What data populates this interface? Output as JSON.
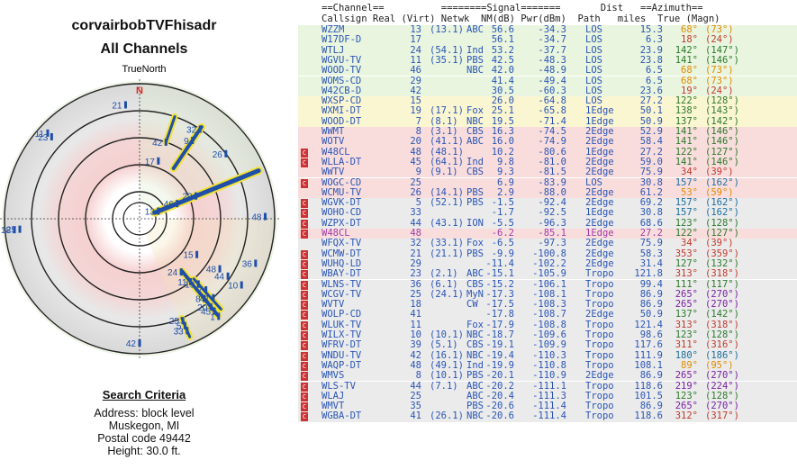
{
  "header": {
    "title": "corvairbobTVFhisadr",
    "subtitle": "All Channels",
    "north_label": "TrueNorth"
  },
  "criteria": {
    "heading": "Search Criteria",
    "address": "Address: block level",
    "city": "Muskegon, MI",
    "postal": "Postal code 49442",
    "height": "Height: 30.0 ft."
  },
  "table": {
    "group_header": "==Channel==          ========Signal=======       Dist   ==Azimuth==",
    "col_header": "Callsign Real (Virt) Netwk  NM(dB) Pwr(dBm)  Path   miles  True (Magn)",
    "badge": "C",
    "rows": [
      {
        "call": "WZZM",
        "real": "13",
        "virt": "(13.1)",
        "net": "ABC",
        "nm": "56.6",
        "pwr": "-34.3",
        "path": "LOS",
        "dist": "15.3",
        "az": "68°",
        "mag": "(73°)",
        "badge": false
      },
      {
        "call": "W17DF-D",
        "real": "17",
        "virt": "",
        "net": "",
        "nm": "56.1",
        "pwr": "-34.7",
        "path": "LOS",
        "dist": "6.3",
        "az": "18°",
        "mag": "(24°)",
        "badge": false
      },
      {
        "call": "WTLJ",
        "real": "24",
        "virt": "(54.1)",
        "net": "Ind",
        "nm": "53.2",
        "pwr": "-37.7",
        "path": "LOS",
        "dist": "23.9",
        "az": "142°",
        "mag": "(147°)",
        "badge": false
      },
      {
        "call": "WGVU-TV",
        "real": "11",
        "virt": "(35.1)",
        "net": "PBS",
        "nm": "42.5",
        "pwr": "-48.3",
        "path": "LOS",
        "dist": "23.8",
        "az": "141°",
        "mag": "(146°)",
        "badge": false
      },
      {
        "call": "WOOD-TV",
        "real": "46",
        "virt": "",
        "net": "NBC",
        "nm": "42.0",
        "pwr": "-48.9",
        "path": "LOS",
        "dist": "6.5",
        "az": "68°",
        "mag": "(73°)",
        "badge": false
      },
      {
        "call": "WOMS-CD",
        "real": "29",
        "virt": "",
        "net": "",
        "nm": "41.4",
        "pwr": "-49.4",
        "path": "LOS",
        "dist": "6.5",
        "az": "68°",
        "mag": "(73°)",
        "badge": false
      },
      {
        "call": "W42CB-D",
        "real": "42",
        "virt": "",
        "net": "",
        "nm": "30.5",
        "pwr": "-60.3",
        "path": "LOS",
        "dist": "23.6",
        "az": "19°",
        "mag": "(24°)",
        "badge": false
      },
      {
        "call": "WXSP-CD",
        "real": "15",
        "virt": "",
        "net": "",
        "nm": "26.0",
        "pwr": "-64.8",
        "path": "LOS",
        "dist": "27.2",
        "az": "122°",
        "mag": "(128°)",
        "badge": false
      },
      {
        "call": "WXMI-DT",
        "real": "19",
        "virt": "(17.1)",
        "net": "Fox",
        "nm": "25.1",
        "pwr": "-65.8",
        "path": "1Edge",
        "dist": "50.1",
        "az": "138°",
        "mag": "(143°)",
        "badge": false
      },
      {
        "call": "WOOD-DT",
        "real": "7",
        "virt": "(8.1)",
        "net": "NBC",
        "nm": "19.5",
        "pwr": "-71.4",
        "path": "1Edge",
        "dist": "50.9",
        "az": "137°",
        "mag": "(142°)",
        "badge": false
      },
      {
        "call": "WWMT",
        "real": "8",
        "virt": "(3.1)",
        "net": "CBS",
        "nm": "16.3",
        "pwr": "-74.5",
        "path": "2Edge",
        "dist": "52.9",
        "az": "141°",
        "mag": "(146°)",
        "badge": false
      },
      {
        "call": "WOTV",
        "real": "20",
        "virt": "(41.1)",
        "net": "ABC",
        "nm": "16.0",
        "pwr": "-74.9",
        "path": "2Edge",
        "dist": "58.4",
        "az": "141°",
        "mag": "(146°)",
        "badge": false
      },
      {
        "call": "W48CL",
        "real": "48",
        "virt": "(48.1)",
        "net": "",
        "nm": "10.2",
        "pwr": "-80.6",
        "path": "1Edge",
        "dist": "27.2",
        "az": "122°",
        "mag": "(127°)",
        "badge": true
      },
      {
        "call": "WLLA-DT",
        "real": "45",
        "virt": "(64.1)",
        "net": "Ind",
        "nm": "9.8",
        "pwr": "-81.0",
        "path": "2Edge",
        "dist": "59.0",
        "az": "141°",
        "mag": "(146°)",
        "badge": true
      },
      {
        "call": "WWTV",
        "real": "9",
        "virt": "(9.1)",
        "net": "CBS",
        "nm": "9.3",
        "pwr": "-81.5",
        "path": "2Edge",
        "dist": "75.9",
        "az": "34°",
        "mag": "(39°)",
        "badge": false
      },
      {
        "call": "WOGC-CD",
        "real": "25",
        "virt": "",
        "net": "",
        "nm": "6.9",
        "pwr": "-83.9",
        "path": "LOS",
        "dist": "30.8",
        "az": "157°",
        "mag": "(162°)",
        "badge": true
      },
      {
        "call": "WCMU-TV",
        "real": "26",
        "virt": "(14.1)",
        "net": "PBS",
        "nm": "2.9",
        "pwr": "-88.0",
        "path": "2Edge",
        "dist": "61.2",
        "az": "53°",
        "mag": "(59°)",
        "badge": false
      },
      {
        "call": "WGVK-DT",
        "real": "5",
        "virt": "(52.1)",
        "net": "PBS",
        "nm": "-1.5",
        "pwr": "-92.4",
        "path": "2Edge",
        "dist": "69.2",
        "az": "157°",
        "mag": "(162°)",
        "badge": true
      },
      {
        "call": "WOHO-CD",
        "real": "33",
        "virt": "",
        "net": "",
        "nm": "-1.7",
        "pwr": "-92.5",
        "path": "1Edge",
        "dist": "30.8",
        "az": "157°",
        "mag": "(162°)",
        "badge": true
      },
      {
        "call": "WZPX-DT",
        "real": "44",
        "virt": "(43.1)",
        "net": "ION",
        "nm": "-5.5",
        "pwr": "-96.3",
        "path": "2Edge",
        "dist": "68.6",
        "az": "123°",
        "mag": "(128°)",
        "badge": true
      },
      {
        "call": "W48CL",
        "real": "48",
        "virt": "",
        "net": "",
        "nm": "-6.2",
        "pwr": "-85.1",
        "path": "1Edge",
        "dist": "27.2",
        "az": "122°",
        "mag": "(127°)",
        "badge": true
      },
      {
        "call": "WFQX-TV",
        "real": "32",
        "virt": "(33.1)",
        "net": "Fox",
        "nm": "-6.5",
        "pwr": "-97.3",
        "path": "2Edge",
        "dist": "75.9",
        "az": "34°",
        "mag": "(39°)",
        "badge": false
      },
      {
        "call": "WCMW-DT",
        "real": "21",
        "virt": "(21.1)",
        "net": "PBS",
        "nm": "-9.9",
        "pwr": "-100.8",
        "path": "2Edge",
        "dist": "58.3",
        "az": "353°",
        "mag": "(359°)",
        "badge": true
      },
      {
        "call": "WUHQ-LD",
        "real": "29",
        "virt": "",
        "net": "",
        "nm": "-11.4",
        "pwr": "-102.2",
        "path": "2Edge",
        "dist": "31.4",
        "az": "127°",
        "mag": "(132°)",
        "badge": true
      },
      {
        "call": "WBAY-DT",
        "real": "23",
        "virt": "(2.1)",
        "net": "ABC",
        "nm": "-15.1",
        "pwr": "-105.9",
        "path": "Tropo",
        "dist": "121.8",
        "az": "313°",
        "mag": "(318°)",
        "badge": true
      },
      {
        "call": "WLNS-TV",
        "real": "36",
        "virt": "(6.1)",
        "net": "CBS",
        "nm": "-15.2",
        "pwr": "-106.1",
        "path": "Tropo",
        "dist": "99.4",
        "az": "111°",
        "mag": "(117°)",
        "badge": true
      },
      {
        "call": "WCGV-TV",
        "real": "25",
        "virt": "(24.1)",
        "net": "MyN",
        "nm": "-17.3",
        "pwr": "-108.1",
        "path": "Tropo",
        "dist": "86.9",
        "az": "265°",
        "mag": "(270°)",
        "badge": true
      },
      {
        "call": "WVTV",
        "real": "18",
        "virt": "",
        "net": "CW",
        "nm": "-17.5",
        "pwr": "-108.3",
        "path": "Tropo",
        "dist": "86.9",
        "az": "265°",
        "mag": "(270°)",
        "badge": true
      },
      {
        "call": "WOLP-CD",
        "real": "41",
        "virt": "",
        "net": "",
        "nm": "-17.8",
        "pwr": "-108.7",
        "path": "2Edge",
        "dist": "50.9",
        "az": "137°",
        "mag": "(142°)",
        "badge": true
      },
      {
        "call": "WLUK-TV",
        "real": "11",
        "virt": "",
        "net": "Fox",
        "nm": "-17.9",
        "pwr": "-108.8",
        "path": "Tropo",
        "dist": "121.4",
        "az": "313°",
        "mag": "(318°)",
        "badge": true
      },
      {
        "call": "WILX-TV",
        "real": "10",
        "virt": "(10.1)",
        "net": "NBC",
        "nm": "-18.7",
        "pwr": "-109.6",
        "path": "Tropo",
        "dist": "98.6",
        "az": "123°",
        "mag": "(128°)",
        "badge": true
      },
      {
        "call": "WFRV-DT",
        "real": "39",
        "virt": "(5.1)",
        "net": "CBS",
        "nm": "-19.1",
        "pwr": "-109.9",
        "path": "Tropo",
        "dist": "117.6",
        "az": "311°",
        "mag": "(316°)",
        "badge": true
      },
      {
        "call": "WNDU-TV",
        "real": "42",
        "virt": "(16.1)",
        "net": "NBC",
        "nm": "-19.4",
        "pwr": "-110.3",
        "path": "Tropo",
        "dist": "111.9",
        "az": "180°",
        "mag": "(186°)",
        "badge": true
      },
      {
        "call": "WAQP-DT",
        "real": "48",
        "virt": "(49.1)",
        "net": "Ind",
        "nm": "-19.9",
        "pwr": "-110.8",
        "path": "Tropo",
        "dist": "108.1",
        "az": "89°",
        "mag": "(95°)",
        "badge": true
      },
      {
        "call": "WMVS",
        "real": "8",
        "virt": "(10.1)",
        "net": "PBS",
        "nm": "-20.1",
        "pwr": "-110.9",
        "path": "2Edge",
        "dist": "86.9",
        "az": "265°",
        "mag": "(270°)",
        "badge": true
      },
      {
        "call": "WLS-TV",
        "real": "44",
        "virt": "(7.1)",
        "net": "ABC",
        "nm": "-20.2",
        "pwr": "-111.1",
        "path": "Tropo",
        "dist": "118.6",
        "az": "219°",
        "mag": "(224°)",
        "badge": true
      },
      {
        "call": "WLAJ",
        "real": "25",
        "virt": "",
        "net": "ABC",
        "nm": "-20.4",
        "pwr": "-111.3",
        "path": "Tropo",
        "dist": "101.5",
        "az": "123°",
        "mag": "(128°)",
        "badge": true
      },
      {
        "call": "WMVT",
        "real": "35",
        "virt": "",
        "net": "PBS",
        "nm": "-20.6",
        "pwr": "-111.4",
        "path": "Tropo",
        "dist": "86.9",
        "az": "265°",
        "mag": "(270°)",
        "badge": true
      },
      {
        "call": "WGBA-DT",
        "real": "41",
        "virt": "(26.1)",
        "net": "NBC",
        "nm": "-20.6",
        "pwr": "-111.4",
        "path": "Tropo",
        "dist": "118.6",
        "az": "312°",
        "mag": "(317°)",
        "badge": true
      }
    ]
  },
  "chart_data": {
    "type": "polar",
    "north_marker": "N",
    "rings": 5,
    "zones": [
      "green",
      "yellow",
      "red",
      "gray"
    ],
    "stations": [
      {
        "ch": "13",
        "az": 68,
        "r": 0.15
      },
      {
        "ch": "46",
        "az": 68,
        "r": 0.3
      },
      {
        "ch": "29",
        "az": 68,
        "r": 0.45
      },
      {
        "ch": "17",
        "az": 18,
        "r": 0.45
      },
      {
        "ch": "42",
        "az": 19,
        "r": 0.6
      },
      {
        "ch": "24",
        "az": 142,
        "r": 0.5
      },
      {
        "ch": "11",
        "az": 141,
        "r": 0.6
      },
      {
        "ch": "15",
        "az": 122,
        "r": 0.5
      },
      {
        "ch": "19",
        "az": 138,
        "r": 0.65
      },
      {
        "ch": "7",
        "az": 137,
        "r": 0.72
      },
      {
        "ch": "8",
        "az": 141,
        "r": 0.76
      },
      {
        "ch": "20",
        "az": 141,
        "r": 0.84
      },
      {
        "ch": "48",
        "az": 122,
        "r": 0.7
      },
      {
        "ch": "45",
        "az": 141,
        "r": 0.88
      },
      {
        "ch": "9",
        "az": 34,
        "r": 0.7
      },
      {
        "ch": "32",
        "az": 34,
        "r": 0.8
      },
      {
        "ch": "25",
        "az": 157,
        "r": 0.82
      },
      {
        "ch": "5",
        "az": 157,
        "r": 0.86
      },
      {
        "ch": "33",
        "az": 157,
        "r": 0.9
      },
      {
        "ch": "26",
        "az": 53,
        "r": 0.8
      },
      {
        "ch": "44",
        "az": 123,
        "r": 0.78
      },
      {
        "ch": "21",
        "az": 353,
        "r": 0.85
      },
      {
        "ch": "36",
        "az": 111,
        "r": 0.92
      },
      {
        "ch": "10",
        "az": 123,
        "r": 0.9
      },
      {
        "ch": "48",
        "az": 89,
        "r": 0.93
      },
      {
        "ch": "42",
        "az": 180,
        "r": 0.92
      },
      {
        "ch": "11",
        "az": 313,
        "r": 0.93
      },
      {
        "ch": "23",
        "az": 313,
        "r": 0.89
      },
      {
        "ch": "18",
        "az": 265,
        "r": 0.93
      },
      {
        "ch": "25",
        "az": 265,
        "r": 0.89
      },
      {
        "ch": "41",
        "az": 137,
        "r": 0.8
      },
      {
        "ch": "1",
        "az": 141,
        "r": 0.93
      }
    ]
  }
}
